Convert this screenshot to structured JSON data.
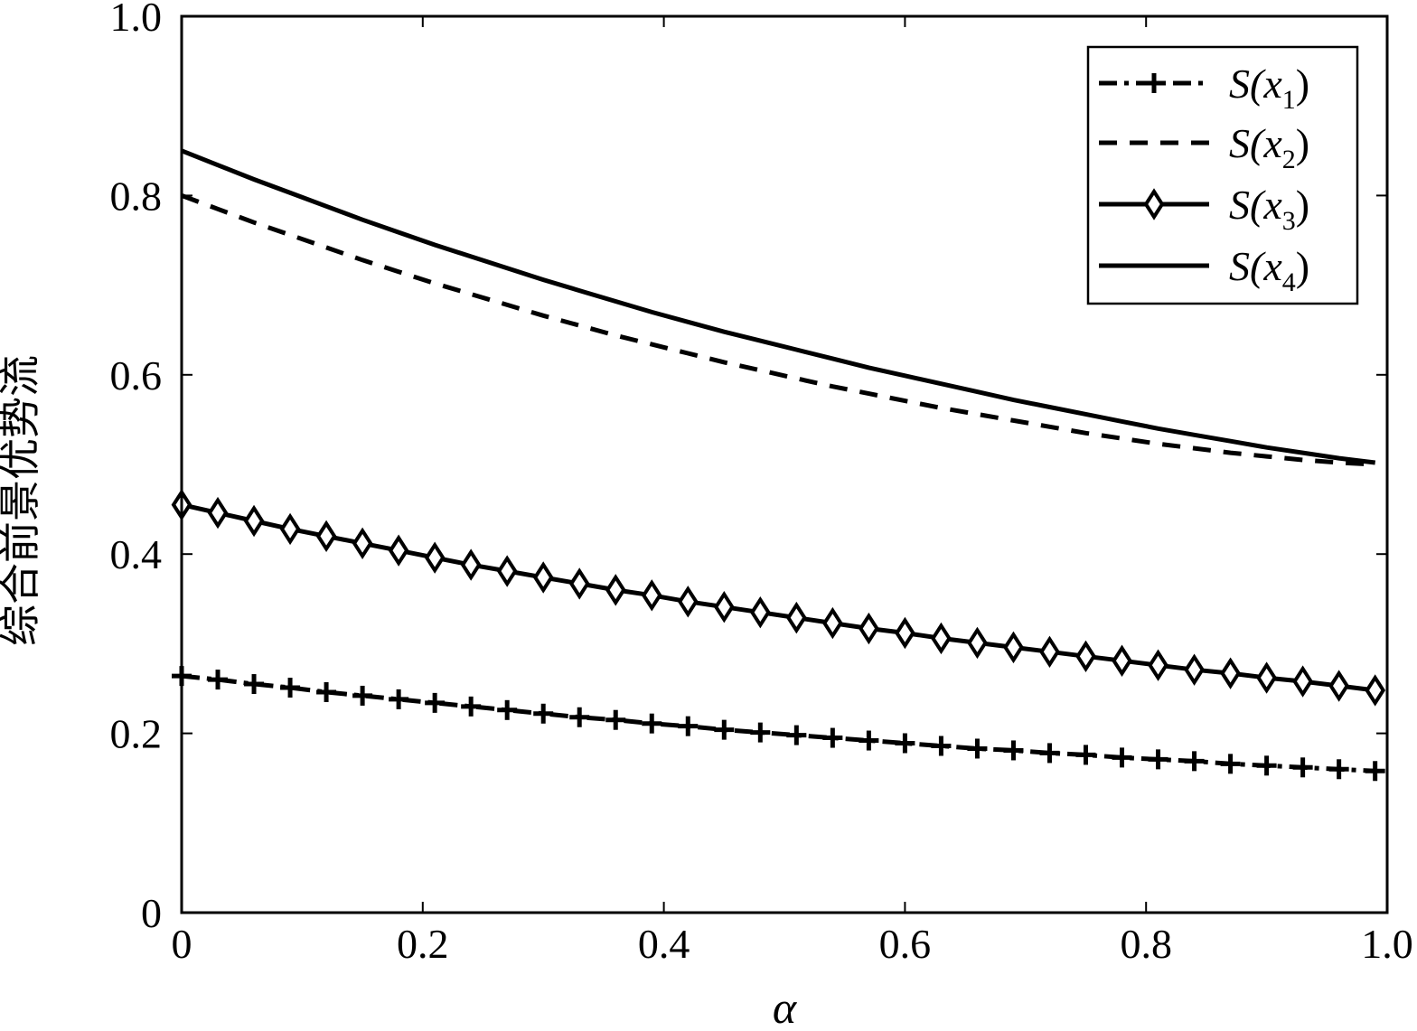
{
  "chart_data": {
    "type": "line",
    "xlabel": "α",
    "ylabel": "综合前景优势流",
    "xlim": [
      0,
      1.0
    ],
    "ylim": [
      0,
      1.0
    ],
    "xticks": [
      "0",
      "0.2",
      "0.4",
      "0.6",
      "0.8",
      "1.0"
    ],
    "yticks": [
      "0",
      "0.2",
      "0.4",
      "0.6",
      "0.8",
      "1.0"
    ],
    "grid": false,
    "legend_position": "top-right",
    "x": [
      0,
      0.03,
      0.06,
      0.09,
      0.12,
      0.15,
      0.18,
      0.21,
      0.24,
      0.27,
      0.3,
      0.33,
      0.36,
      0.39,
      0.42,
      0.45,
      0.48,
      0.51,
      0.54,
      0.57,
      0.6,
      0.63,
      0.66,
      0.69,
      0.72,
      0.75,
      0.78,
      0.81,
      0.84,
      0.87,
      0.9,
      0.93,
      0.96,
      0.99
    ],
    "series": [
      {
        "name": "S(x₁)",
        "legend_main": "S(x",
        "legend_sub": "1",
        "legend_close": ")",
        "style": "dashdot",
        "marker": "plus",
        "values": [
          0.264,
          0.26,
          0.255,
          0.251,
          0.246,
          0.242,
          0.238,
          0.234,
          0.23,
          0.226,
          0.222,
          0.218,
          0.215,
          0.211,
          0.208,
          0.204,
          0.201,
          0.198,
          0.195,
          0.192,
          0.189,
          0.186,
          0.183,
          0.181,
          0.178,
          0.176,
          0.173,
          0.171,
          0.169,
          0.166,
          0.164,
          0.162,
          0.16,
          0.158
        ]
      },
      {
        "name": "S(x₂)",
        "legend_main": "S(x",
        "legend_sub": "2",
        "legend_close": ")",
        "style": "dashed",
        "marker": "none",
        "values": [
          0.8,
          0.785,
          0.77,
          0.756,
          0.742,
          0.728,
          0.715,
          0.702,
          0.69,
          0.678,
          0.666,
          0.655,
          0.644,
          0.634,
          0.624,
          0.614,
          0.605,
          0.596,
          0.587,
          0.579,
          0.571,
          0.563,
          0.556,
          0.549,
          0.542,
          0.535,
          0.529,
          0.523,
          0.518,
          0.513,
          0.509,
          0.505,
          0.502,
          0.5
        ]
      },
      {
        "name": "S(x₃)",
        "legend_main": "S(x",
        "legend_sub": "3",
        "legend_close": ")",
        "style": "solid",
        "marker": "diamond",
        "values": [
          0.455,
          0.446,
          0.437,
          0.428,
          0.42,
          0.412,
          0.404,
          0.396,
          0.388,
          0.381,
          0.374,
          0.367,
          0.36,
          0.354,
          0.347,
          0.341,
          0.335,
          0.329,
          0.323,
          0.317,
          0.312,
          0.306,
          0.301,
          0.296,
          0.291,
          0.286,
          0.281,
          0.276,
          0.271,
          0.267,
          0.262,
          0.258,
          0.253,
          0.248
        ]
      },
      {
        "name": "S(x₄)",
        "legend_main": "S(x",
        "legend_sub": "4",
        "legend_close": ")",
        "style": "solid",
        "marker": "none",
        "values": [
          0.85,
          0.834,
          0.818,
          0.803,
          0.788,
          0.773,
          0.759,
          0.745,
          0.732,
          0.719,
          0.706,
          0.694,
          0.682,
          0.67,
          0.659,
          0.648,
          0.638,
          0.628,
          0.618,
          0.608,
          0.599,
          0.59,
          0.581,
          0.572,
          0.564,
          0.556,
          0.548,
          0.54,
          0.533,
          0.526,
          0.519,
          0.513,
          0.507,
          0.502
        ]
      }
    ]
  }
}
